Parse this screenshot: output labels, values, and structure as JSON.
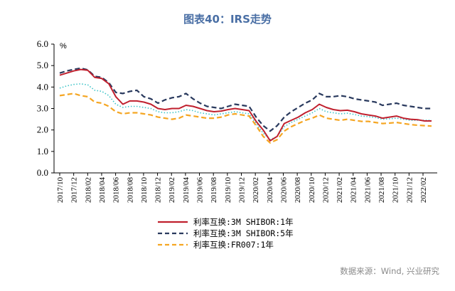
{
  "chart_data": {
    "type": "line",
    "title": "图表40：IRS走势",
    "unit": "%",
    "ylim": [
      0,
      6
    ],
    "y_ticks": [
      "0.0",
      "1.0",
      "2.0",
      "3.0",
      "4.0",
      "5.0",
      "6.0"
    ],
    "x_ticks": [
      "2017/10",
      "2017/12",
      "2018/02",
      "2018/04",
      "2018/06",
      "2018/08",
      "2018/10",
      "2018/12",
      "2019/02",
      "2019/04",
      "2019/06",
      "2019/08",
      "2019/10",
      "2019/12",
      "2020/02",
      "2020/04",
      "2020/06",
      "2020/08",
      "2020/10",
      "2020/12",
      "2021/02",
      "2021/04",
      "2021/06",
      "2021/08",
      "2021/10",
      "2021/12",
      "2022/02"
    ],
    "grid": false,
    "legend_position": "bottom",
    "x": [
      "2017/10",
      "2017/11",
      "2017/12",
      "2018/01",
      "2018/02",
      "2018/03",
      "2018/04",
      "2018/05",
      "2018/06",
      "2018/07",
      "2018/08",
      "2018/09",
      "2018/10",
      "2018/11",
      "2018/12",
      "2019/01",
      "2019/02",
      "2019/03",
      "2019/04",
      "2019/05",
      "2019/06",
      "2019/07",
      "2019/08",
      "2019/09",
      "2019/10",
      "2019/11",
      "2019/12",
      "2020/01",
      "2020/02",
      "2020/03",
      "2020/04",
      "2020/05",
      "2020/06",
      "2020/07",
      "2020/08",
      "2020/09",
      "2020/10",
      "2020/11",
      "2020/12",
      "2021/01",
      "2021/02",
      "2021/03",
      "2021/04",
      "2021/05",
      "2021/06",
      "2021/07",
      "2021/08",
      "2021/09",
      "2021/10",
      "2021/11",
      "2021/12",
      "2022/01",
      "2022/02",
      "2022/03"
    ],
    "series": [
      {
        "name": "利率互换:3M SHIBOR:1年",
        "color": "#c0202e",
        "style": "solid",
        "values": [
          4.55,
          4.65,
          4.75,
          4.82,
          4.78,
          4.45,
          4.4,
          4.15,
          3.55,
          3.2,
          3.35,
          3.35,
          3.3,
          3.2,
          3.0,
          2.95,
          3.0,
          3.0,
          3.15,
          3.1,
          3.0,
          2.9,
          2.85,
          2.88,
          2.95,
          3.0,
          2.95,
          2.9,
          2.4,
          2.0,
          1.5,
          1.7,
          2.3,
          2.45,
          2.6,
          2.8,
          2.95,
          3.2,
          3.05,
          2.95,
          2.9,
          2.92,
          2.85,
          2.75,
          2.7,
          2.65,
          2.55,
          2.6,
          2.65,
          2.55,
          2.5,
          2.48,
          2.42,
          2.42
        ]
      },
      {
        "name": "利率互换:3M SHIBOR:5年",
        "color": "#2a3a5e",
        "style": "dashed",
        "values": [
          4.65,
          4.75,
          4.82,
          4.88,
          4.8,
          4.5,
          4.45,
          4.2,
          3.75,
          3.7,
          3.8,
          3.85,
          3.55,
          3.45,
          3.25,
          3.4,
          3.5,
          3.55,
          3.7,
          3.45,
          3.25,
          3.1,
          3.05,
          3.0,
          3.1,
          3.2,
          3.15,
          3.1,
          2.6,
          2.2,
          1.95,
          2.2,
          2.6,
          2.85,
          3.05,
          3.25,
          3.4,
          3.7,
          3.55,
          3.55,
          3.6,
          3.55,
          3.45,
          3.4,
          3.35,
          3.3,
          3.15,
          3.2,
          3.25,
          3.15,
          3.1,
          3.05,
          3.0,
          3.0
        ]
      },
      {
        "name": "利率互换:FR007:1年",
        "color": "#f5a623",
        "style": "dashed",
        "values": [
          3.6,
          3.65,
          3.7,
          3.6,
          3.55,
          3.3,
          3.25,
          3.1,
          2.85,
          2.75,
          2.8,
          2.8,
          2.75,
          2.7,
          2.6,
          2.55,
          2.5,
          2.55,
          2.7,
          2.65,
          2.6,
          2.55,
          2.55,
          2.6,
          2.7,
          2.75,
          2.7,
          2.65,
          2.2,
          1.7,
          1.4,
          1.55,
          1.95,
          2.15,
          2.3,
          2.45,
          2.55,
          2.7,
          2.55,
          2.5,
          2.45,
          2.5,
          2.45,
          2.4,
          2.4,
          2.35,
          2.3,
          2.32,
          2.35,
          2.3,
          2.25,
          2.22,
          2.2,
          2.18
        ]
      },
      {
        "color": "#3cc4c8",
        "style": "dotted",
        "values": [
          3.95,
          4.05,
          4.12,
          4.15,
          4.1,
          3.85,
          3.8,
          3.6,
          3.2,
          3.05,
          3.1,
          3.1,
          3.05,
          3.0,
          2.85,
          2.8,
          2.8,
          2.85,
          2.95,
          2.9,
          2.8,
          2.75,
          2.7,
          2.75,
          2.8,
          2.85,
          2.8,
          2.75,
          2.3,
          1.85,
          1.55,
          1.7,
          2.15,
          2.35,
          2.5,
          2.65,
          2.8,
          3.0,
          2.85,
          2.8,
          2.75,
          2.78,
          2.72,
          2.65,
          2.62,
          2.58,
          2.5,
          2.52,
          2.55,
          2.5,
          2.45,
          2.45,
          2.45,
          2.45
        ]
      }
    ]
  },
  "source": "数据来源：Wind, 兴业研究"
}
